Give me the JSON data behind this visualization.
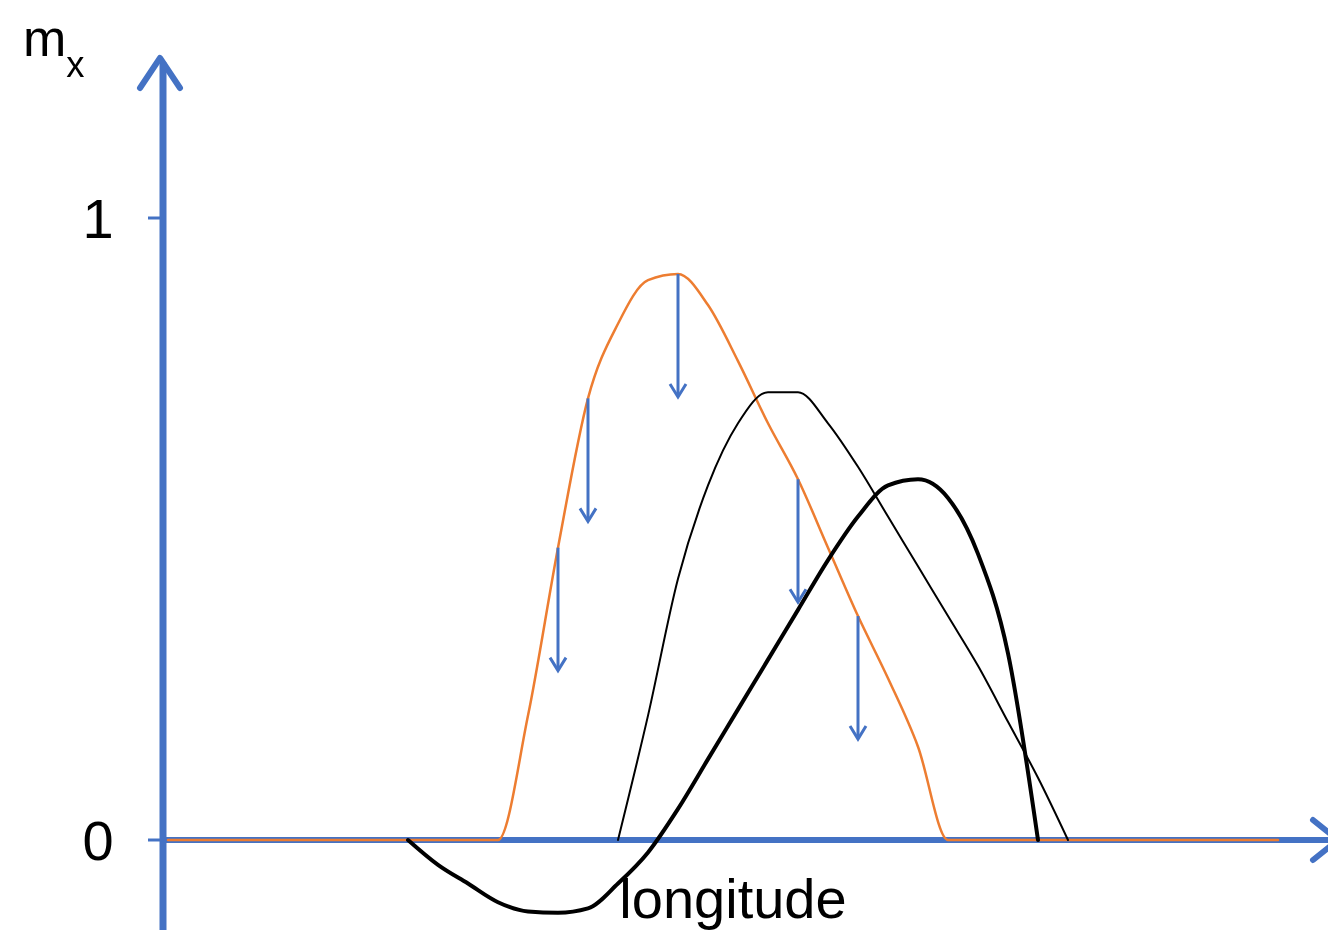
{
  "chart_data": {
    "type": "line",
    "xlabel": "longitude",
    "ylabel": "m$_{x}$",
    "categories": [
      null,
      null,
      null,
      null,
      null,
      null,
      null,
      null,
      null,
      null,
      null,
      null,
      null,
      null,
      null,
      null,
      null,
      null,
      null,
      null,
      null,
      null,
      null,
      null,
      null,
      null,
      null,
      null,
      null,
      null,
      null,
      null,
      null,
      null,
      null,
      null,
      null,
      null,
      null
    ],
    "series": [
      {
        "color": "#ed7d31",
        "values": [
          0,
          0,
          0,
          0,
          0,
          0,
          0,
          0,
          0,
          0,
          0,
          0,
          0.2,
          0.47,
          0.71,
          0.83,
          0.9,
          0.91,
          0.86,
          0.77,
          0.67,
          0.58,
          0.47,
          0.36,
          0.26,
          0.15,
          0,
          0,
          0,
          0,
          0,
          0,
          0,
          0,
          0,
          0,
          0,
          0,
          null
        ]
      },
      {
        "color": "#000000",
        "values": [
          null,
          null,
          null,
          null,
          null,
          null,
          null,
          null,
          null,
          null,
          null,
          null,
          null,
          null,
          null,
          0,
          0.2,
          0.42,
          0.57,
          0.67,
          0.72,
          0.72,
          0.67,
          0.6,
          0.52,
          0.44,
          0.36,
          0.28,
          0.19,
          0.1,
          0,
          null,
          null,
          null,
          null,
          null,
          null,
          null,
          null
        ]
      },
      {
        "color": "#000000",
        "values": [
          null,
          null,
          null,
          null,
          null,
          null,
          null,
          null,
          0,
          -0.04,
          -0.07,
          -0.1,
          -0.115,
          -0.117,
          -0.11,
          -0.07,
          -0.02,
          0.05,
          0.13,
          0.21,
          0.29,
          0.37,
          0.45,
          0.52,
          0.57,
          0.58,
          0.55,
          0.46,
          0.3,
          0,
          null,
          null,
          null,
          null,
          null,
          null,
          null,
          null,
          null
        ]
      }
    ],
    "ylim": [
      -0.15,
      1.25
    ],
    "yticks": [
      0,
      1
    ],
    "tick_labels": "y",
    "marker": "none",
    "ref_lines": [
      {
        "axis": "y",
        "value": 0,
        "color": "#4472c4"
      }
    ],
    "line_style": "solid"
  }
}
